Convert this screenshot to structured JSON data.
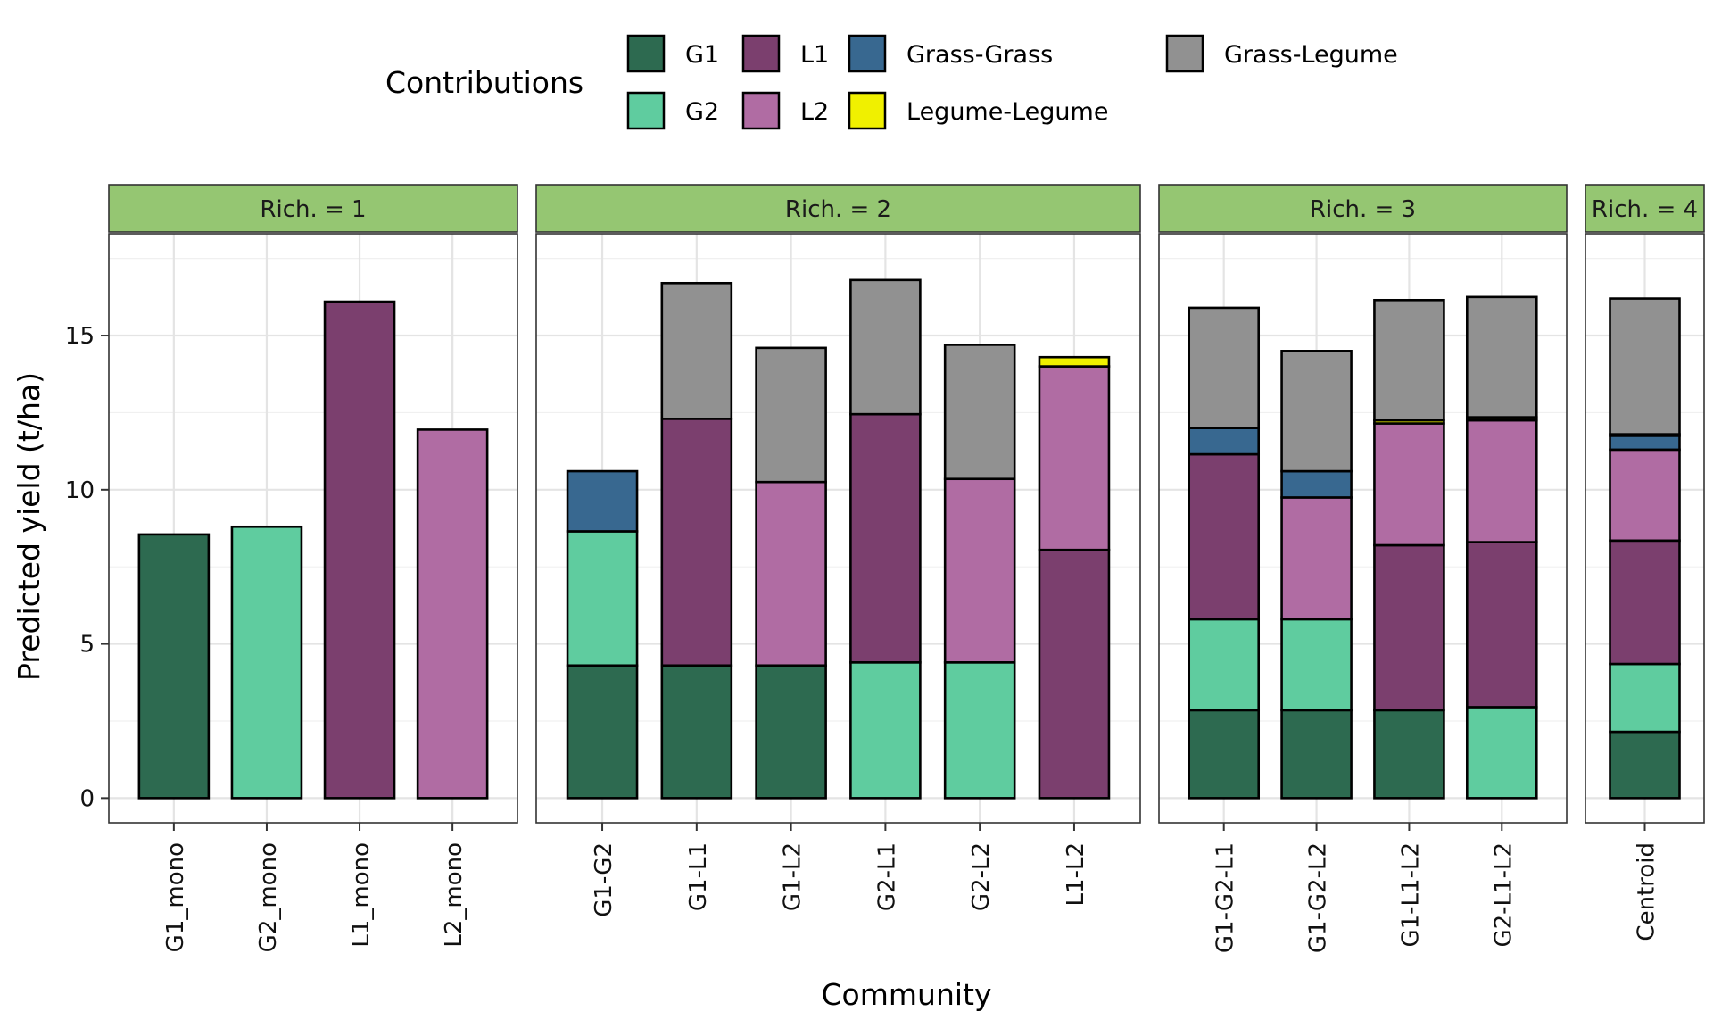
{
  "chart_data": {
    "type": "bar",
    "stacked": true,
    "xlabel": "Community",
    "ylabel": "Predicted yield (t/ha)",
    "ylim": [
      -0.8,
      18.3
    ],
    "yticks": [
      0,
      5,
      10,
      15
    ],
    "legend": {
      "title": "Contributions",
      "placement": "top",
      "items": [
        {
          "key": "G1",
          "label": "G1",
          "color": "#2d6a50"
        },
        {
          "key": "G2",
          "label": "G2",
          "color": "#5fcc9f"
        },
        {
          "key": "L1",
          "label": "L1",
          "color": "#7b3f6e"
        },
        {
          "key": "L2",
          "label": "L2",
          "color": "#b06ca3"
        },
        {
          "key": "GG",
          "label": "Grass-Grass",
          "color": "#386890"
        },
        {
          "key": "LL",
          "label": "Legume-Legume",
          "color": "#f0f000"
        },
        {
          "key": "GL",
          "label": "Grass-Legume",
          "color": "#919191"
        }
      ]
    },
    "stack_order": [
      "G1",
      "G2",
      "L1",
      "L2",
      "GG",
      "LL",
      "GL"
    ],
    "facets": [
      {
        "label": "Rich. = 1",
        "bars": [
          {
            "category": "G1_mono",
            "G1": 8.55
          },
          {
            "category": "G2_mono",
            "G2": 8.8
          },
          {
            "category": "L1_mono",
            "L1": 16.1
          },
          {
            "category": "L2_mono",
            "L2": 11.95
          }
        ]
      },
      {
        "label": "Rich. = 2",
        "bars": [
          {
            "category": "G1-G2",
            "G1": 4.3,
            "G2": 4.35,
            "GG": 1.95
          },
          {
            "category": "G1-L1",
            "G1": 4.3,
            "L1": 8.0,
            "GL": 4.4
          },
          {
            "category": "G1-L2",
            "G1": 4.3,
            "L2": 5.95,
            "GL": 4.35
          },
          {
            "category": "G2-L1",
            "G2": 4.4,
            "L1": 8.05,
            "GL": 4.35
          },
          {
            "category": "G2-L2",
            "G2": 4.4,
            "L2": 5.95,
            "GL": 4.35
          },
          {
            "category": "L1-L2",
            "L1": 8.05,
            "L2": 5.95,
            "LL": 0.3
          }
        ]
      },
      {
        "label": "Rich. = 3",
        "bars": [
          {
            "category": "G1-G2-L1",
            "G1": 2.85,
            "G2": 2.95,
            "L1": 5.35,
            "GG": 0.85,
            "GL": 3.9
          },
          {
            "category": "G1-G2-L2",
            "G1": 2.85,
            "G2": 2.95,
            "L2": 3.95,
            "GG": 0.85,
            "GL": 3.9
          },
          {
            "category": "G1-L1-L2",
            "G1": 2.85,
            "L1": 5.35,
            "L2": 3.95,
            "LL": 0.1,
            "GL": 3.9
          },
          {
            "category": "G2-L1-L2",
            "G2": 2.95,
            "L1": 5.35,
            "L2": 3.95,
            "LL": 0.1,
            "GL": 3.9
          }
        ]
      },
      {
        "label": "Rich. = 4",
        "bars": [
          {
            "category": "Centroid",
            "G1": 2.15,
            "G2": 2.2,
            "L1": 4.0,
            "L2": 2.95,
            "GG": 0.45,
            "LL": 0.05,
            "GL": 4.4
          }
        ]
      }
    ]
  }
}
